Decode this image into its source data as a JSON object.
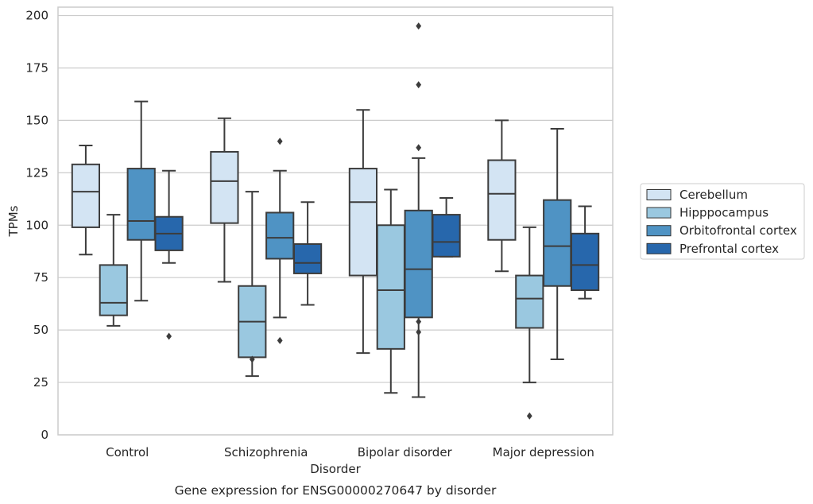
{
  "caption": "Gene expression for ENSG00000270647 by disorder",
  "colors": {
    "Cerebellum": "#d3e4f3",
    "Hipppocampus": "#9ac8e0",
    "Orbitofrontal cortex": "#4f93c4",
    "Prefrontal cortex": "#2767ac",
    "line": "#3c3c3c",
    "grid": "#cccccc"
  },
  "chart_data": {
    "type": "box",
    "xlabel": "Disorder",
    "ylabel": "TPMs",
    "ylim": [
      0,
      204
    ],
    "yticks": [
      0,
      25,
      50,
      75,
      100,
      125,
      150,
      175,
      200
    ],
    "grid": "horizontal",
    "legend_position": "right",
    "categories": [
      "Control",
      "Schizophrenia",
      "Bipolar disorder",
      "Major depression"
    ],
    "series": [
      {
        "name": "Cerebellum",
        "boxes": [
          {
            "category": "Control",
            "whisker_low": 86,
            "q1": 99,
            "median": 116,
            "q3": 129,
            "whisker_high": 138,
            "outliers": []
          },
          {
            "category": "Schizophrenia",
            "whisker_low": 73,
            "q1": 101,
            "median": 121,
            "q3": 135,
            "whisker_high": 151,
            "outliers": []
          },
          {
            "category": "Bipolar disorder",
            "whisker_low": 39,
            "q1": 76,
            "median": 111,
            "q3": 127,
            "whisker_high": 155,
            "outliers": []
          },
          {
            "category": "Major depression",
            "whisker_low": 78,
            "q1": 93,
            "median": 115,
            "q3": 131,
            "whisker_high": 150,
            "outliers": []
          }
        ]
      },
      {
        "name": "Hipppocampus",
        "boxes": [
          {
            "category": "Control",
            "whisker_low": 52,
            "q1": 57,
            "median": 63,
            "q3": 81,
            "whisker_high": 105,
            "outliers": []
          },
          {
            "category": "Schizophrenia",
            "whisker_low": 28,
            "q1": 37,
            "median": 54,
            "q3": 71,
            "whisker_high": 116,
            "outliers": [
              36
            ]
          },
          {
            "category": "Bipolar disorder",
            "whisker_low": 20,
            "q1": 41,
            "median": 69,
            "q3": 100,
            "whisker_high": 117,
            "outliers": []
          },
          {
            "category": "Major depression",
            "whisker_low": 25,
            "q1": 51,
            "median": 65,
            "q3": 76,
            "whisker_high": 99,
            "outliers": [
              9
            ]
          }
        ]
      },
      {
        "name": "Orbitofrontal cortex",
        "boxes": [
          {
            "category": "Control",
            "whisker_low": 64,
            "q1": 93,
            "median": 102,
            "q3": 127,
            "whisker_high": 159,
            "outliers": []
          },
          {
            "category": "Schizophrenia",
            "whisker_low": 56,
            "q1": 84,
            "median": 94,
            "q3": 106,
            "whisker_high": 126,
            "outliers": [
              140,
              45
            ]
          },
          {
            "category": "Bipolar disorder",
            "whisker_low": 18,
            "q1": 56,
            "median": 79,
            "q3": 107,
            "whisker_high": 132,
            "outliers": [
              195,
              167,
              137,
              54,
              49
            ]
          },
          {
            "category": "Major depression",
            "whisker_low": 36,
            "q1": 71,
            "median": 90,
            "q3": 112,
            "whisker_high": 146,
            "outliers": []
          }
        ]
      },
      {
        "name": "Prefrontal cortex",
        "boxes": [
          {
            "category": "Control",
            "whisker_low": 82,
            "q1": 88,
            "median": 96,
            "q3": 104,
            "whisker_high": 126,
            "outliers": [
              47
            ]
          },
          {
            "category": "Schizophrenia",
            "whisker_low": 62,
            "q1": 77,
            "median": 82,
            "q3": 91,
            "whisker_high": 111,
            "outliers": []
          },
          {
            "category": "Bipolar disorder",
            "whisker_low": 85,
            "q1": 85,
            "median": 92,
            "q3": 105,
            "whisker_high": 113,
            "outliers": []
          },
          {
            "category": "Major depression",
            "whisker_low": 65,
            "q1": 69,
            "median": 81,
            "q3": 96,
            "whisker_high": 109,
            "outliers": []
          }
        ]
      }
    ]
  }
}
